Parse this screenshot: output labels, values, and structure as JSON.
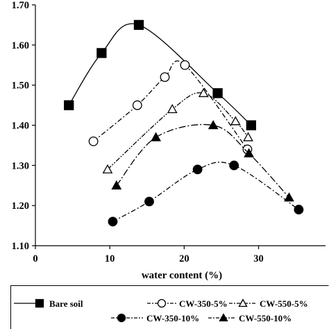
{
  "chart_data": {
    "type": "line",
    "xlabel": "water content (%)",
    "xlim": [
      0,
      39
    ],
    "ylim": [
      1.1,
      1.7
    ],
    "xticks": [
      "0",
      "10",
      "20",
      "30"
    ],
    "yticks": [
      "1.10",
      "1.20",
      "1.30",
      "1.40",
      "1.50",
      "1.60",
      "1.70"
    ],
    "grid": false,
    "legend_position": "bottom",
    "color": "#000000",
    "series": [
      {
        "name": "Bare soil",
        "marker": "square",
        "filled": true,
        "line": "solid",
        "x": [
          4.5,
          8.9,
          13.9,
          24.5,
          29.0
        ],
        "y": [
          1.45,
          1.58,
          1.65,
          1.48,
          1.4
        ]
      },
      {
        "name": "CW-350-5%",
        "marker": "circle",
        "filled": false,
        "line": "dash-dot",
        "x": [
          7.8,
          13.7,
          17.4,
          20.1,
          28.5
        ],
        "y": [
          1.36,
          1.45,
          1.52,
          1.55,
          1.34
        ]
      },
      {
        "name": "CW-550-5%",
        "marker": "triangle",
        "filled": false,
        "line": "dash-dot-dot",
        "x": [
          9.7,
          18.4,
          22.6,
          26.9,
          28.6
        ],
        "y": [
          1.29,
          1.44,
          1.48,
          1.41,
          1.37
        ]
      },
      {
        "name": "CW-350-10%",
        "marker": "circle",
        "filled": true,
        "line": "dash-dot",
        "x": [
          10.4,
          15.3,
          21.8,
          26.7,
          35.4
        ],
        "y": [
          1.16,
          1.21,
          1.29,
          1.3,
          1.19
        ]
      },
      {
        "name": "CW-550-10%",
        "marker": "triangle",
        "filled": true,
        "line": "long-dash-dot",
        "x": [
          10.9,
          16.2,
          23.9,
          28.7,
          34.1
        ],
        "y": [
          1.25,
          1.37,
          1.4,
          1.33,
          1.22
        ]
      }
    ]
  }
}
